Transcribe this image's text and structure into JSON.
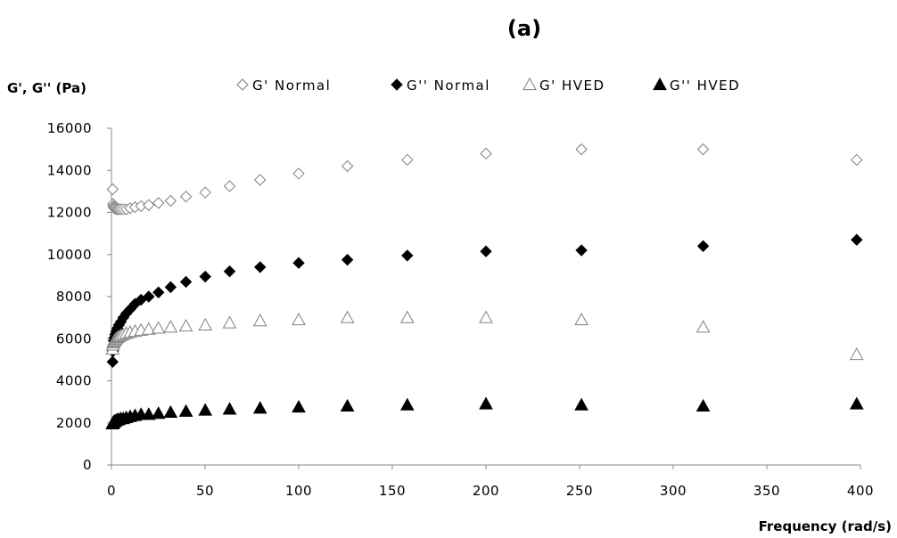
{
  "chart_data": {
    "type": "scatter",
    "title": "(a)",
    "xlabel": "Frequency (rad/s)",
    "ylabel": "G', G'' (Pa)",
    "xlim": [
      0,
      400
    ],
    "ylim": [
      0,
      16000
    ],
    "xticks": [
      0,
      50,
      100,
      150,
      200,
      250,
      300,
      350,
      400
    ],
    "yticks": [
      0,
      2000,
      4000,
      6000,
      8000,
      10000,
      12000,
      14000,
      16000
    ],
    "grid": false,
    "legend": "top",
    "x": [
      0.63,
      0.79,
      1,
      1.26,
      1.58,
      2,
      2.51,
      3.16,
      3.98,
      5.01,
      6.31,
      7.94,
      10,
      12.6,
      15.8,
      19.9,
      25.1,
      31.6,
      39.8,
      50.1,
      63.1,
      79.4,
      100,
      126,
      158,
      200,
      251,
      316,
      398
    ],
    "series": [
      {
        "name": "G' Normal",
        "marker": "diamond-open",
        "color": "#808080",
        "values": [
          13100,
          12400,
          12300,
          12250,
          12200,
          12200,
          12150,
          12150,
          12150,
          12150,
          12150,
          12150,
          12200,
          12250,
          12300,
          12350,
          12450,
          12550,
          12750,
          12950,
          13250,
          13550,
          13850,
          14200,
          14500,
          14800,
          15000,
          15000,
          14500
        ]
      },
      {
        "name": "G'' Normal",
        "marker": "diamond-filled",
        "color": "#000000",
        "values": [
          4900,
          5400,
          5700,
          5900,
          6050,
          6200,
          6350,
          6500,
          6650,
          6800,
          7000,
          7200,
          7400,
          7650,
          7850,
          8000,
          8200,
          8450,
          8700,
          8950,
          9200,
          9400,
          9600,
          9750,
          9950,
          10150,
          10200,
          10400,
          10700
        ]
      },
      {
        "name": "G' HVED",
        "marker": "triangle-open",
        "color": "#808080",
        "values": [
          5500,
          5700,
          5800,
          5850,
          5900,
          5950,
          6000,
          6050,
          6100,
          6150,
          6200,
          6250,
          6300,
          6350,
          6400,
          6450,
          6500,
          6550,
          6600,
          6650,
          6750,
          6850,
          6900,
          7000,
          7000,
          7000,
          6900,
          6550,
          5250
        ]
      },
      {
        "name": "G'' HVED",
        "marker": "triangle-filled",
        "color": "#000000",
        "values": [
          1950,
          2000,
          2000,
          2050,
          2050,
          2100,
          2100,
          2150,
          2150,
          2200,
          2200,
          2250,
          2300,
          2350,
          2400,
          2400,
          2450,
          2500,
          2550,
          2600,
          2650,
          2700,
          2750,
          2800,
          2850,
          2900,
          2850,
          2800,
          2900
        ]
      }
    ]
  }
}
